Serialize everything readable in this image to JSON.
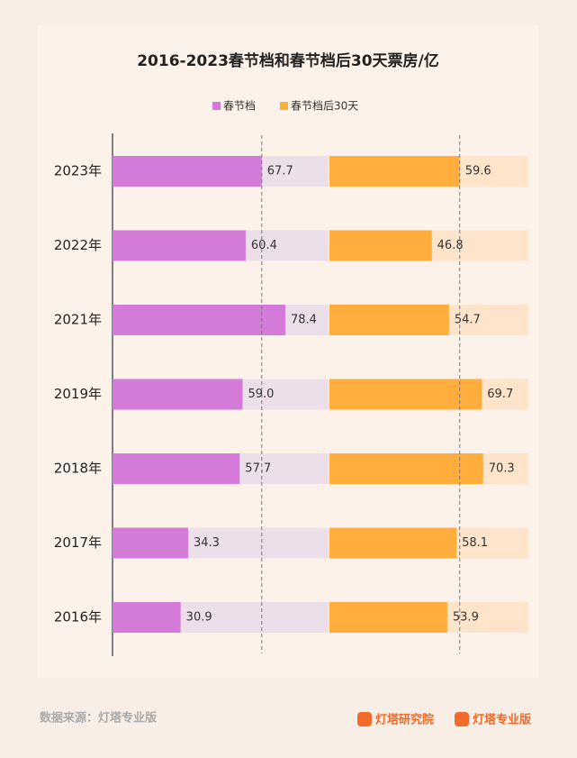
{
  "chart_data": {
    "type": "paired-bar",
    "title": "2016-2023春节档和春节档后30天票房/亿",
    "categories": [
      "2023年",
      "2022年",
      "2021年",
      "2019年",
      "2018年",
      "2017年",
      "2016年"
    ],
    "series": [
      {
        "name": "春节档",
        "color": "#d47bd9",
        "values": [
          67.7,
          60.4,
          78.4,
          59,
          57.7,
          34.3,
          30.9
        ],
        "value_labels": [
          "67.7",
          "60.4",
          "78.4",
          "59.0",
          "57.7",
          "34.3",
          "30.9"
        ],
        "xlim": [
          0,
          98
        ]
      },
      {
        "name": "春节档后30天",
        "color": "#ffae3e",
        "values": [
          59.6,
          46.8,
          54.7,
          69.7,
          70.3,
          58.1,
          53.9
        ],
        "value_labels": [
          "59.6",
          "46.8",
          "54.7",
          "69.7",
          "70.3",
          "58.1",
          "53.9"
        ],
        "xlim": [
          0,
          91
        ]
      }
    ]
  },
  "footer": {
    "source": "数据来源：灯塔专业版",
    "logos": [
      "灯塔研究院",
      "灯塔专业版"
    ]
  }
}
